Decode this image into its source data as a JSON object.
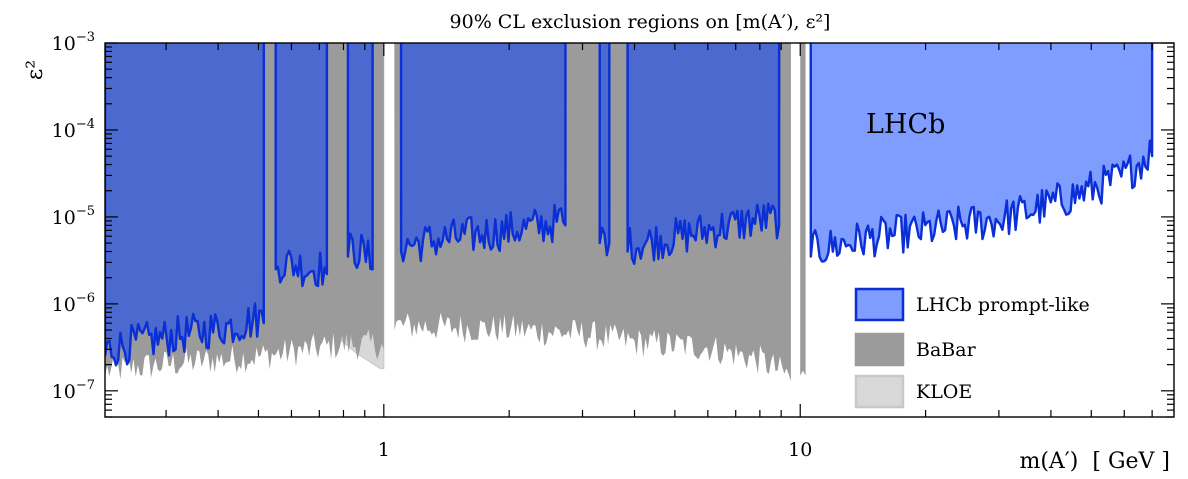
{
  "chart_data": {
    "type": "area",
    "title": "90% CL exclusion regions on [m(A′), ε²]",
    "xlabel": "m(A′)  [ GeV ]",
    "ylabel": "ε²",
    "xscale": "log",
    "yscale": "log",
    "xlim": [
      0.214,
      79
    ],
    "ylim": [
      5e-08,
      0.001
    ],
    "x_ticks": [
      {
        "value": 1,
        "label": "1"
      },
      {
        "value": 10,
        "label": "10"
      }
    ],
    "y_ticks": [
      {
        "value": 1e-07,
        "base": "10",
        "exp": "−7"
      },
      {
        "value": 1e-06,
        "base": "10",
        "exp": "−6"
      },
      {
        "value": 1e-05,
        "base": "10",
        "exp": "−5"
      },
      {
        "value": 0.0001,
        "base": "10",
        "exp": "−4"
      },
      {
        "value": 0.001,
        "base": "10",
        "exp": "−3"
      }
    ],
    "annotation": "LHCb",
    "legend_position": "bottom-right",
    "colors": {
      "lhcb_fill_low": "#4c69cf",
      "lhcb_fill_high": "#7f9cff",
      "lhcb_edge": "#0a2fd6",
      "babar": "#9b9b9b",
      "kloe": "#d8d8d8",
      "kloe_edge": "#c8c8c8"
    },
    "series": [
      {
        "name": "KLOE",
        "regions": [
          {
            "x": [
              0.5,
              0.56,
              0.62,
              0.68,
              0.74,
              0.8,
              0.86,
              0.92,
              0.98,
              1.0
            ],
            "y": [
              3e-06,
              1.6e-06,
              1e-06,
              7e-07,
              5e-07,
              3.6e-07,
              2.7e-07,
              2.2e-07,
              1.8e-07,
              1.8e-07
            ]
          }
        ]
      },
      {
        "name": "BaBar",
        "regions": [
          {
            "x": [
              0.214,
              0.3,
              0.5,
              0.8,
              1.0
            ],
            "y": [
              1.5e-07,
              1.8e-07,
              2.2e-07,
              3e-07,
              3e-07
            ]
          },
          {
            "x": [
              1.06,
              2.0,
              3.0,
              4.0,
              6.0,
              8.0,
              9.5
            ],
            "y": [
              5e-07,
              4.5e-07,
              4e-07,
              3.2e-07,
              2.8e-07,
              2e-07,
              1.3e-07
            ]
          },
          {
            "x": [
              10.0,
              10.3
            ],
            "y": [
              1.5e-07,
              1.5e-07
            ]
          }
        ]
      },
      {
        "name": "LHCb prompt-like",
        "regions": [
          {
            "x": [
              0.214,
              0.25,
              0.3,
              0.35,
              0.4,
              0.45,
              0.515
            ],
            "y": [
              2.5e-07,
              3e-07,
              3.5e-07,
              4e-07,
              4.5e-07,
              5e-07,
              6e-07
            ]
          },
          {
            "x": [
              0.55,
              0.6,
              0.65,
              0.73
            ],
            "y": [
              2.5e-06,
              2.5e-06,
              2.2e-06,
              2.2e-06
            ]
          },
          {
            "x": [
              0.82,
              0.88,
              0.94
            ],
            "y": [
              3.5e-06,
              3.5e-06,
              2.5e-06
            ]
          },
          {
            "x": [
              1.1,
              1.5,
              2.0,
              2.5,
              2.73
            ],
            "y": [
              4e-06,
              5e-06,
              6e-06,
              7e-06,
              8e-06
            ]
          },
          {
            "x": [
              3.3,
              3.48
            ],
            "y": [
              5e-06,
              5e-06
            ]
          },
          {
            "x": [
              3.85,
              5.0,
              6.0,
              7.0,
              8.0,
              8.9
            ],
            "y": [
              4e-06,
              5e-06,
              6e-06,
              7e-06,
              8e-06,
              8e-06
            ]
          },
          {
            "x": [
              10.6,
              15,
              20,
              30,
              40,
              50,
              60,
              70
            ],
            "y": [
              3.5e-06,
              5e-06,
              6e-06,
              8e-06,
              1.2e-05,
              1.8e-05,
              2.5e-05,
              5e-05
            ]
          }
        ]
      }
    ],
    "legend": [
      {
        "name": "LHCb prompt-like",
        "swatch": "lhcb"
      },
      {
        "name": "BaBar",
        "swatch": "babar"
      },
      {
        "name": "KLOE",
        "swatch": "kloe"
      }
    ]
  }
}
